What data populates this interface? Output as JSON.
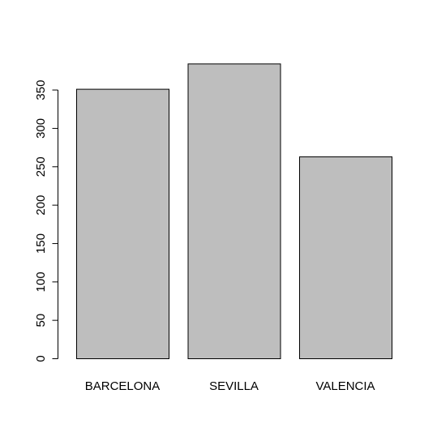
{
  "chart_data": {
    "type": "bar",
    "categories": [
      "BARCELONA",
      "SEVILLA",
      "VALENCIA"
    ],
    "values": [
      351,
      384,
      263
    ],
    "yticks": [
      0,
      50,
      100,
      150,
      200,
      250,
      300,
      350
    ],
    "ylim": [
      0,
      395
    ],
    "title": "",
    "xlabel": "",
    "ylabel": "",
    "grid": false,
    "bar_fill": "#bebebe",
    "bar_stroke": "#000000"
  }
}
